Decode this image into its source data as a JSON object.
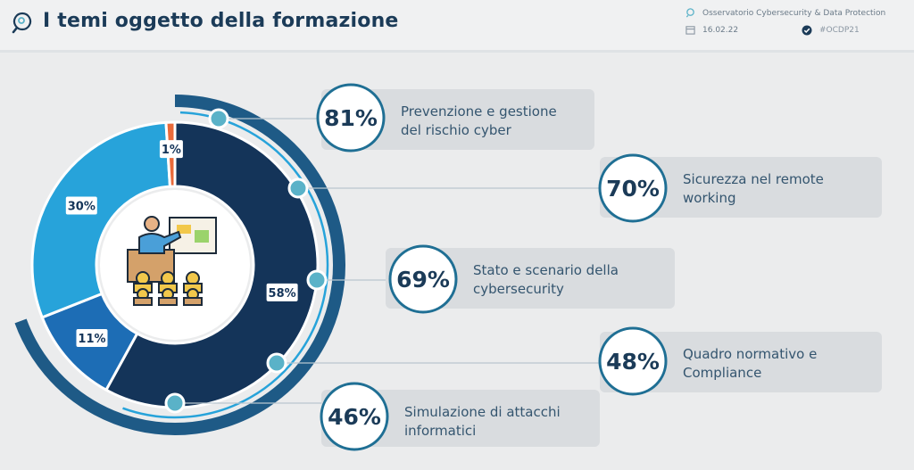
{
  "header": {
    "title": "I temi oggetto della formazione",
    "organization": "Osservatorio Cybersecurity & Data Protection",
    "date": "16.02.22",
    "hashtag": "#OCDP21",
    "icons": [
      "chat-search-icon",
      "location-pin-icon",
      "calendar-icon",
      "check-badge-icon"
    ]
  },
  "colors": {
    "dark_navy": "#143459",
    "light_blue": "#27a3da",
    "mid_blue": "#1d6db5",
    "orange": "#e96a3a",
    "teal_dot": "#5ab2c8",
    "outer_ring": "#1e5a86"
  },
  "chart_data": [
    {
      "type": "pie",
      "variant": "donut",
      "slices": [
        {
          "label": "58%",
          "value": 58,
          "color": "#143459"
        },
        {
          "label": "11%",
          "value": 11,
          "color": "#1d6db5"
        },
        {
          "label": "30%",
          "value": 30,
          "color": "#27a3da"
        },
        {
          "label": "1%",
          "value": 1,
          "color": "#e96a3a"
        }
      ],
      "center_icon": "classroom-presentation-icon"
    },
    {
      "type": "bar",
      "categories": [
        "Prevenzione e gestione del rischio cyber",
        "Sicurezza nel remote working",
        "Stato e scenario della cybersecurity",
        "Quadro normativo e Compliance",
        "Simulazione di attacchi informatici"
      ],
      "values": [
        81,
        70,
        69,
        48,
        46
      ],
      "value_labels": [
        "81%",
        "70%",
        "69%",
        "48%",
        "46%"
      ],
      "label_lines": [
        [
          "Prevenzione e gestione",
          "del rischio cyber"
        ],
        [
          "Sicurezza nel remote",
          "working"
        ],
        [
          "Stato e scenario della",
          "cybersecurity"
        ],
        [
          "Quadro normativo e",
          "Compliance"
        ],
        [
          "Simulazione di attacchi",
          "informatici"
        ]
      ]
    }
  ]
}
